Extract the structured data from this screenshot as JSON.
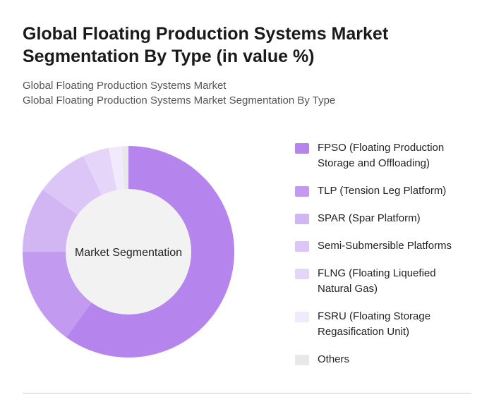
{
  "chart_data": {
    "type": "donut",
    "title": "Global Floating Production Systems Market Segmentation By Type (in value %)",
    "subtitle": [
      "Global Floating Production Systems Market",
      "Global Floating Production Systems Market Segmentation By Type"
    ],
    "center_label": "Market Segmentation",
    "categories": [
      "FPSO (Floating Production Storage and Offloading)",
      "TLP (Tension Leg Platform)",
      "SPAR (Spar Platform)",
      "Semi-Submersible Platforms",
      "FLNG (Floating Liquefied Natural Gas)",
      "FSRU (Floating Storage Regasification Unit)",
      "Others"
    ],
    "values": [
      60,
      15,
      10,
      8,
      4,
      2,
      1
    ],
    "colors": [
      "#b684ed",
      "#c29bf0",
      "#d2b6f4",
      "#dcc6f7",
      "#e5d5f9",
      "#f1e9fc",
      "#e8e8e8"
    ]
  }
}
